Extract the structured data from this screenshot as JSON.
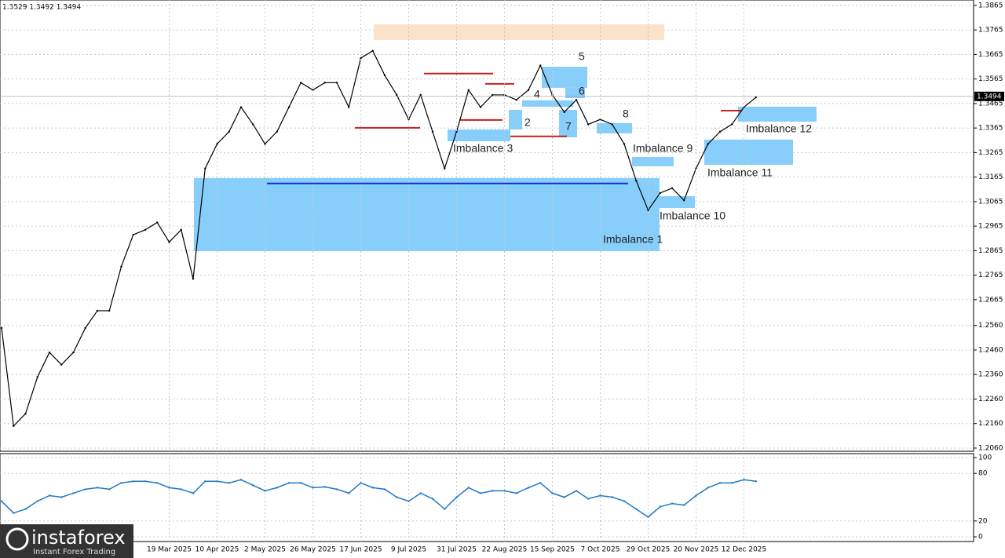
{
  "chart_data": [
    {
      "type": "line",
      "title": "1.3529 1.3492 1.3494",
      "color": "#000000",
      "grid": true,
      "categories": [
        null,
        null,
        null,
        null,
        null,
        null,
        null,
        null,
        null,
        null,
        null,
        null,
        null,
        null,
        "19 Mar 2025",
        null,
        null,
        null,
        "10 Apr 2025",
        null,
        null,
        null,
        "2 May 2025",
        null,
        null,
        null,
        "26 May 2025",
        null,
        null,
        null,
        "17 Jun 2025",
        null,
        null,
        null,
        "9 Jul 2025",
        null,
        null,
        null,
        "31 Jul 2025",
        null,
        null,
        null,
        "22 Aug 2025",
        null,
        null,
        null,
        "15 Sep 2025",
        null,
        null,
        null,
        "7 Oct 2025",
        null,
        null,
        null,
        "29 Oct 2025",
        null,
        null,
        null,
        "20 Nov 2025",
        null,
        null,
        null,
        "12 Dec 2025",
        null
      ],
      "values": [
        1.255,
        1.215,
        1.22,
        1.235,
        1.245,
        1.24,
        1.245,
        1.255,
        1.262,
        1.262,
        1.28,
        1.293,
        1.295,
        1.298,
        1.29,
        1.295,
        1.275,
        1.32,
        1.33,
        1.335,
        1.345,
        1.338,
        1.33,
        1.335,
        1.345,
        1.355,
        1.352,
        1.355,
        1.355,
        1.345,
        1.365,
        1.368,
        1.358,
        1.35,
        1.34,
        1.35,
        1.335,
        1.32,
        1.335,
        1.352,
        1.345,
        1.35,
        1.35,
        1.348,
        1.352,
        1.362,
        1.35,
        1.343,
        1.348,
        1.338,
        1.34,
        1.338,
        1.33,
        1.315,
        1.303,
        1.31,
        1.312,
        1.307,
        1.32,
        1.33,
        1.335,
        1.338,
        1.345,
        1.349
      ],
      "ylim": [
        1.2047,
        1.3887
      ],
      "yticks": [
        {
          "value": 1.206,
          "label": "1.2060"
        },
        {
          "value": 1.216,
          "label": "1.2160"
        },
        {
          "value": 1.226,
          "label": "1.2260"
        },
        {
          "value": 1.236,
          "label": "1.2360"
        },
        {
          "value": 1.246,
          "label": "1.2460"
        },
        {
          "value": 1.256,
          "label": "1.2560"
        },
        1.2665,
        1.2765,
        1.2865,
        1.2965,
        1.3065,
        1.3165,
        1.3265,
        1.3365,
        1.3465,
        1.3565,
        1.3665,
        1.3765,
        1.3865
      ],
      "last_value": 1.3494,
      "zones": [
        {
          "label": "Imbalance 1",
          "low": 1.2863,
          "high": 1.3161,
          "color": "#87cefa"
        },
        {
          "label": "2",
          "low": 1.3359,
          "high": 1.3439,
          "color": "#87cefa"
        },
        {
          "label": "Imbalance 3",
          "low": 1.3311,
          "high": 1.3359,
          "color": "#87cefa"
        },
        {
          "label": "4",
          "low": 1.3452,
          "high": 1.3478,
          "color": "#87cefa"
        },
        {
          "label": "5",
          "low": 1.3529,
          "high": 1.3615,
          "color": "#87cefa"
        },
        {
          "label": "6",
          "low": 1.3487,
          "high": 1.3529,
          "color": "#87cefa"
        },
        {
          "label": "7",
          "low": 1.3327,
          "high": 1.3439,
          "color": "#87cefa"
        },
        {
          "label": "8",
          "low": 1.3343,
          "high": 1.3385,
          "color": "#87cefa"
        },
        {
          "label": "Imbalance 9",
          "low": 1.3209,
          "high": 1.3247,
          "color": "#87cefa"
        },
        {
          "label": "Imbalance 10",
          "low": 1.3039,
          "high": 1.3087,
          "color": "#87cefa"
        },
        {
          "label": "Imbalance 11",
          "low": 1.3215,
          "high": 1.3318,
          "color": "#87cefa"
        },
        {
          "label": "Imbalance 12",
          "low": 1.3391,
          "high": 1.3452,
          "color": "#87cefa"
        },
        {
          "low": 1.3724,
          "high": 1.3788,
          "color": "#fae3c8"
        }
      ],
      "levels": [
        {
          "value": 1.3139,
          "color": "#1030c0"
        },
        {
          "value": 1.3366,
          "color": "#c81e1e"
        },
        {
          "value": 1.3587,
          "color": "#c81e1e"
        },
        {
          "value": 1.3398,
          "color": "#c81e1e"
        },
        {
          "value": 1.3545,
          "color": "#c81e1e"
        },
        {
          "value": 1.3331,
          "color": "#c81e1e"
        },
        {
          "value": 1.3436,
          "color": "#c81e1e"
        }
      ]
    },
    {
      "type": "line",
      "color": "#1e78c8",
      "grid": true,
      "values": [
        45,
        30,
        35,
        45,
        52,
        50,
        55,
        60,
        62,
        60,
        68,
        70,
        70,
        68,
        62,
        60,
        55,
        70,
        70,
        68,
        72,
        65,
        58,
        62,
        68,
        68,
        62,
        63,
        60,
        55,
        68,
        62,
        60,
        50,
        45,
        55,
        48,
        35,
        50,
        62,
        55,
        58,
        58,
        55,
        62,
        68,
        55,
        50,
        58,
        48,
        52,
        50,
        45,
        35,
        25,
        38,
        42,
        40,
        52,
        62,
        68,
        68,
        72,
        70
      ],
      "ylim": [
        0,
        100
      ],
      "yticks": [
        0,
        20,
        80,
        100
      ]
    }
  ],
  "logo": {
    "name": "instaforex",
    "tagline": "Instant Forex Trading"
  }
}
